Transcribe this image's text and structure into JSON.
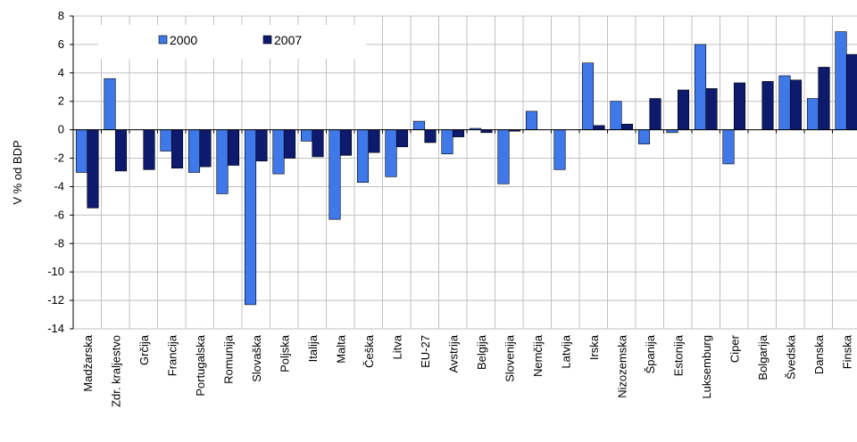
{
  "chart_data": {
    "type": "bar",
    "title": "",
    "xlabel": "",
    "ylabel": "V % od BDP",
    "ylim": [
      -14,
      8
    ],
    "yticks": [
      8,
      6,
      4,
      2,
      0,
      -2,
      -4,
      -6,
      -8,
      -10,
      -12,
      -14
    ],
    "grid": true,
    "legend_position": "top-left",
    "categories": [
      "Madžarska",
      "Zdr. kraljestvo",
      "Grčija",
      "Francija",
      "Portugalska",
      "Romunija",
      "Slovaška",
      "Poljska",
      "Italija",
      "Malta",
      "Češka",
      "Litva",
      "EU-27",
      "Avstrija",
      "Belgija",
      "Slovenija",
      "Nemčija",
      "Latvija",
      "Irska",
      "Nizozemska",
      "Španija",
      "Estonija",
      "Luksemburg",
      "Ciper",
      "Bolgarija",
      "Švedska",
      "Danska",
      "Finska"
    ],
    "series": [
      {
        "name": "2000",
        "color": "#3f78e8",
        "values": [
          -3.0,
          3.6,
          null,
          -1.5,
          -3.0,
          -4.5,
          -12.3,
          -3.1,
          -0.8,
          -6.3,
          -3.7,
          -3.3,
          0.6,
          -1.7,
          0.1,
          -3.8,
          1.3,
          -2.8,
          4.7,
          2.0,
          -1.0,
          -0.2,
          6.0,
          -2.4,
          null,
          3.8,
          2.2,
          6.9
        ]
      },
      {
        "name": "2007",
        "color": "#0d1a6e",
        "values": [
          -5.5,
          -2.9,
          -2.8,
          -2.7,
          -2.6,
          -2.5,
          -2.2,
          -2.0,
          -1.9,
          -1.8,
          -1.6,
          -1.2,
          -0.9,
          -0.5,
          -0.2,
          -0.1,
          0.0,
          0.0,
          0.3,
          0.4,
          2.2,
          2.8,
          2.9,
          3.3,
          3.4,
          3.5,
          4.4,
          5.3
        ]
      }
    ]
  }
}
